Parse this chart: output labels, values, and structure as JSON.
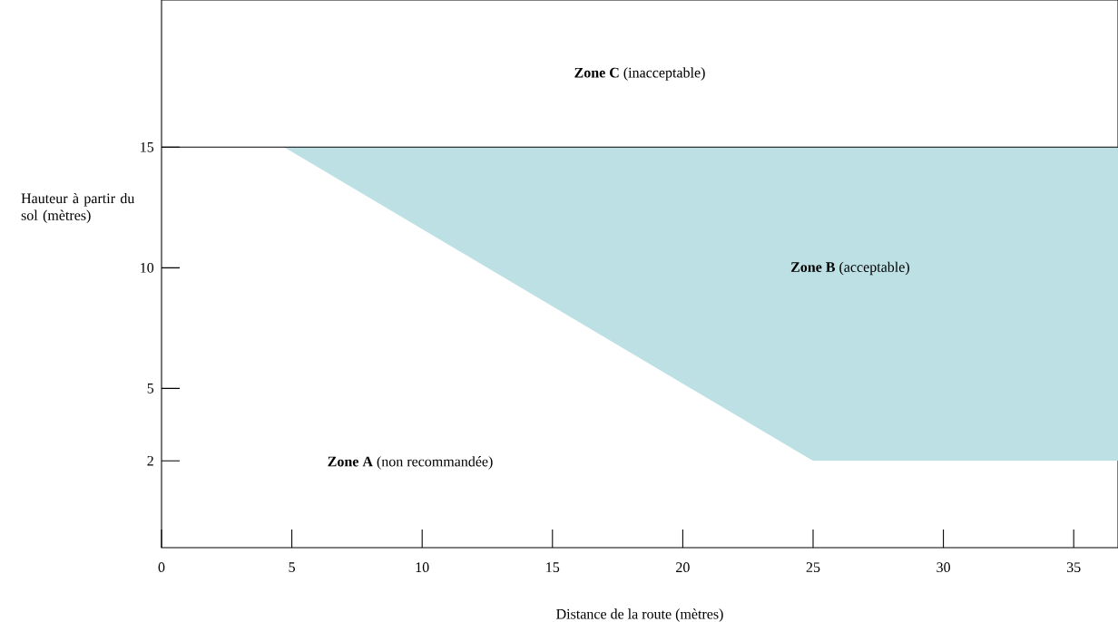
{
  "chart_data": {
    "type": "area",
    "xlabel": "Distance de la route (mètres)",
    "ylabel": "Hauteur à partir du sol (mètres)",
    "xlim": [
      0,
      36.7
    ],
    "ylim": [
      -1.6,
      21.1
    ],
    "xticks": [
      0,
      5,
      10,
      15,
      20,
      25,
      30,
      35
    ],
    "yticks": [
      2,
      5,
      10,
      15
    ],
    "series": [
      {
        "x": [
          4.7,
          25,
          36.7,
          36.7
        ],
        "values": [
          15,
          2,
          2,
          15
        ],
        "color": "#bce0e3"
      }
    ],
    "ref_lines": [
      {
        "axis": "y",
        "value": 15
      }
    ],
    "annotations": [
      "**Zone C** (inacceptable)",
      "**Zone B** (acceptable)",
      "**Zone A** (non recommandée)"
    ]
  }
}
